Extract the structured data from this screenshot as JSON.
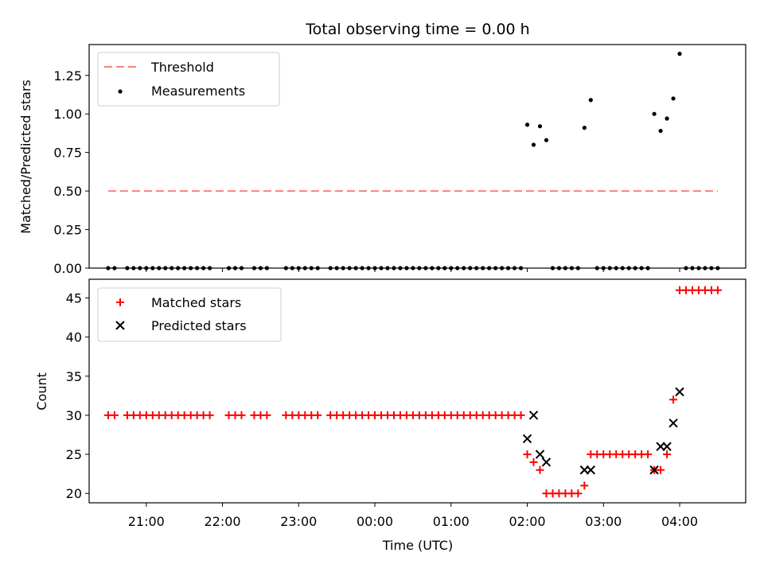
{
  "chart_data": [
    {
      "type": "scatter",
      "title": "Total observing time = 0.00 h",
      "xlabel": "",
      "ylabel": "Matched/Predicted stars",
      "xlim": [
        "20:15",
        "04:52"
      ],
      "ylim": [
        0,
        1.45
      ],
      "yticks": [
        "0.00",
        "0.25",
        "0.50",
        "0.75",
        "1.00",
        "1.25"
      ],
      "legend": {
        "position": "top-left",
        "entries": [
          {
            "label": "Threshold",
            "style": "dashed-line",
            "color": "#ff7f7f"
          },
          {
            "label": "Measurements",
            "style": "dot",
            "color": "#000000"
          }
        ]
      },
      "threshold": {
        "value": 0.5,
        "x_start": "20:30",
        "x_end": "04:30"
      },
      "series": [
        {
          "name": "Measurements",
          "x": [
            "20:30",
            "20:35",
            "20:45",
            "20:50",
            "20:55",
            "21:00",
            "21:05",
            "21:10",
            "21:15",
            "21:20",
            "21:25",
            "21:30",
            "21:35",
            "21:40",
            "21:45",
            "21:50",
            "22:05",
            "22:10",
            "22:15",
            "22:25",
            "22:30",
            "22:35",
            "22:50",
            "22:55",
            "23:00",
            "23:05",
            "23:10",
            "23:15",
            "23:25",
            "23:30",
            "23:35",
            "23:40",
            "23:45",
            "23:50",
            "23:55",
            "00:00",
            "00:05",
            "00:10",
            "00:15",
            "00:20",
            "00:25",
            "00:30",
            "00:35",
            "00:40",
            "00:45",
            "00:50",
            "00:55",
            "01:00",
            "01:05",
            "01:10",
            "01:15",
            "01:20",
            "01:25",
            "01:30",
            "01:35",
            "01:40",
            "01:45",
            "01:50",
            "01:55",
            "02:00",
            "02:05",
            "02:10",
            "02:15",
            "02:20",
            "02:25",
            "02:30",
            "02:35",
            "02:40",
            "02:45",
            "02:50",
            "02:55",
            "03:00",
            "03:05",
            "03:10",
            "03:15",
            "03:20",
            "03:25",
            "03:30",
            "03:35",
            "03:40",
            "03:45",
            "03:50",
            "03:55",
            "04:00",
            "04:05",
            "04:10",
            "04:15",
            "04:20",
            "04:25",
            "04:30"
          ],
          "y": [
            0,
            0,
            0,
            0,
            0,
            0,
            0,
            0,
            0,
            0,
            0,
            0,
            0,
            0,
            0,
            0,
            0,
            0,
            0,
            0,
            0,
            0,
            0,
            0,
            0,
            0,
            0,
            0,
            0,
            0,
            0,
            0,
            0,
            0,
            0,
            0,
            0,
            0,
            0,
            0,
            0,
            0,
            0,
            0,
            0,
            0,
            0,
            0,
            0,
            0,
            0,
            0,
            0,
            0,
            0,
            0,
            0,
            0,
            0,
            0.93,
            0.8,
            0.92,
            0.83,
            0,
            0,
            0,
            0,
            0,
            0.91,
            1.09,
            0,
            0,
            0,
            0,
            0,
            0,
            0,
            0,
            0,
            1.0,
            0.89,
            0.97,
            1.1,
            1.39,
            0,
            0,
            0,
            0,
            0,
            0
          ]
        }
      ]
    },
    {
      "type": "scatter",
      "title": "",
      "xlabel": "Time (UTC)",
      "ylabel": "Count",
      "xlim": [
        "20:15",
        "04:52"
      ],
      "ylim": [
        18.8,
        47.4
      ],
      "yticks": [
        "20",
        "25",
        "30",
        "35",
        "40",
        "45"
      ],
      "xticks": [
        "21:00",
        "22:00",
        "23:00",
        "00:00",
        "01:00",
        "02:00",
        "03:00",
        "04:00"
      ],
      "legend": {
        "position": "top-left",
        "entries": [
          {
            "label": "Matched stars",
            "style": "plus",
            "color": "#ff0000"
          },
          {
            "label": "Predicted stars",
            "style": "cross",
            "color": "#000000"
          }
        ]
      },
      "series": [
        {
          "name": "Matched stars",
          "x": [
            "20:30",
            "20:35",
            "20:45",
            "20:50",
            "20:55",
            "21:00",
            "21:05",
            "21:10",
            "21:15",
            "21:20",
            "21:25",
            "21:30",
            "21:35",
            "21:40",
            "21:45",
            "21:50",
            "22:05",
            "22:10",
            "22:15",
            "22:25",
            "22:30",
            "22:35",
            "22:50",
            "22:55",
            "23:00",
            "23:05",
            "23:10",
            "23:15",
            "23:25",
            "23:30",
            "23:35",
            "23:40",
            "23:45",
            "23:50",
            "23:55",
            "00:00",
            "00:05",
            "00:10",
            "00:15",
            "00:20",
            "00:25",
            "00:30",
            "00:35",
            "00:40",
            "00:45",
            "00:50",
            "00:55",
            "01:00",
            "01:05",
            "01:10",
            "01:15",
            "01:20",
            "01:25",
            "01:30",
            "01:35",
            "01:40",
            "01:45",
            "01:50",
            "01:55",
            "02:00",
            "02:05",
            "02:10",
            "02:15",
            "02:20",
            "02:25",
            "02:30",
            "02:35",
            "02:40",
            "02:45",
            "02:50",
            "02:55",
            "03:00",
            "03:05",
            "03:10",
            "03:15",
            "03:20",
            "03:25",
            "03:30",
            "03:35",
            "03:40",
            "03:45",
            "03:50",
            "03:55",
            "04:00",
            "04:05",
            "04:10",
            "04:15",
            "04:20",
            "04:25",
            "04:30"
          ],
          "y": [
            30,
            30,
            30,
            30,
            30,
            30,
            30,
            30,
            30,
            30,
            30,
            30,
            30,
            30,
            30,
            30,
            30,
            30,
            30,
            30,
            30,
            30,
            30,
            30,
            30,
            30,
            30,
            30,
            30,
            30,
            30,
            30,
            30,
            30,
            30,
            30,
            30,
            30,
            30,
            30,
            30,
            30,
            30,
            30,
            30,
            30,
            30,
            30,
            30,
            30,
            30,
            30,
            30,
            30,
            30,
            30,
            30,
            30,
            30,
            25,
            24,
            23,
            20,
            20,
            20,
            20,
            20,
            20,
            21,
            25,
            25,
            25,
            25,
            25,
            25,
            25,
            25,
            25,
            25,
            23,
            23,
            25,
            32,
            46,
            46,
            46,
            46,
            46,
            46,
            46
          ]
        },
        {
          "name": "Predicted stars",
          "x": [
            "02:00",
            "02:05",
            "02:10",
            "02:15",
            "02:45",
            "02:50",
            "03:40",
            "03:45",
            "03:50",
            "03:55",
            "04:00"
          ],
          "y": [
            27,
            30,
            25,
            24,
            23,
            23,
            23,
            26,
            26,
            29,
            33
          ]
        }
      ]
    }
  ]
}
